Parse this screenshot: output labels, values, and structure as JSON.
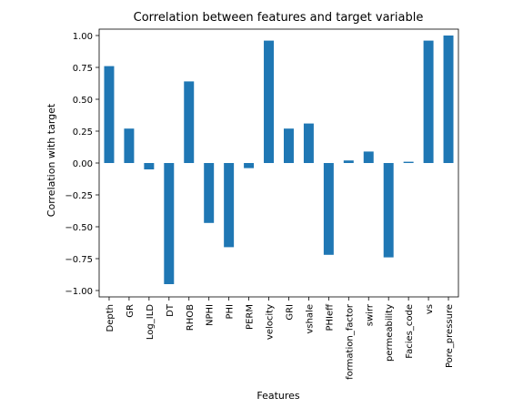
{
  "chart_data": {
    "type": "bar",
    "title": "Correlation between features and target variable",
    "xlabel": "Features",
    "ylabel": "Correlation with target",
    "categories": [
      "Depth",
      "GR",
      "Log_ILD",
      "DT",
      "RHOB",
      "NPHI",
      "PHI",
      "PERM",
      "velocity",
      "GRI",
      "vshale",
      "PHIeff",
      "formation_factor",
      "swirr",
      "permeability",
      "Facies_code",
      "vs",
      "Pore_pressure"
    ],
    "values": [
      0.76,
      0.27,
      -0.05,
      -0.95,
      0.64,
      -0.47,
      -0.66,
      -0.04,
      0.96,
      0.27,
      0.31,
      -0.72,
      0.02,
      0.09,
      -0.74,
      0.01,
      0.96,
      1.0
    ],
    "ylim": [
      -1.05,
      1.05
    ],
    "yticks": [
      1.0,
      0.75,
      0.5,
      0.25,
      0.0,
      -0.25,
      -0.5,
      -0.75,
      -1.0
    ],
    "ytick_labels": [
      "1.00",
      "0.75",
      "0.50",
      "0.25",
      "0.00",
      "−0.25",
      "−0.50",
      "−0.75",
      "−1.00"
    ],
    "bar_color": "#1f77b4",
    "grid": false,
    "legend": "none"
  }
}
